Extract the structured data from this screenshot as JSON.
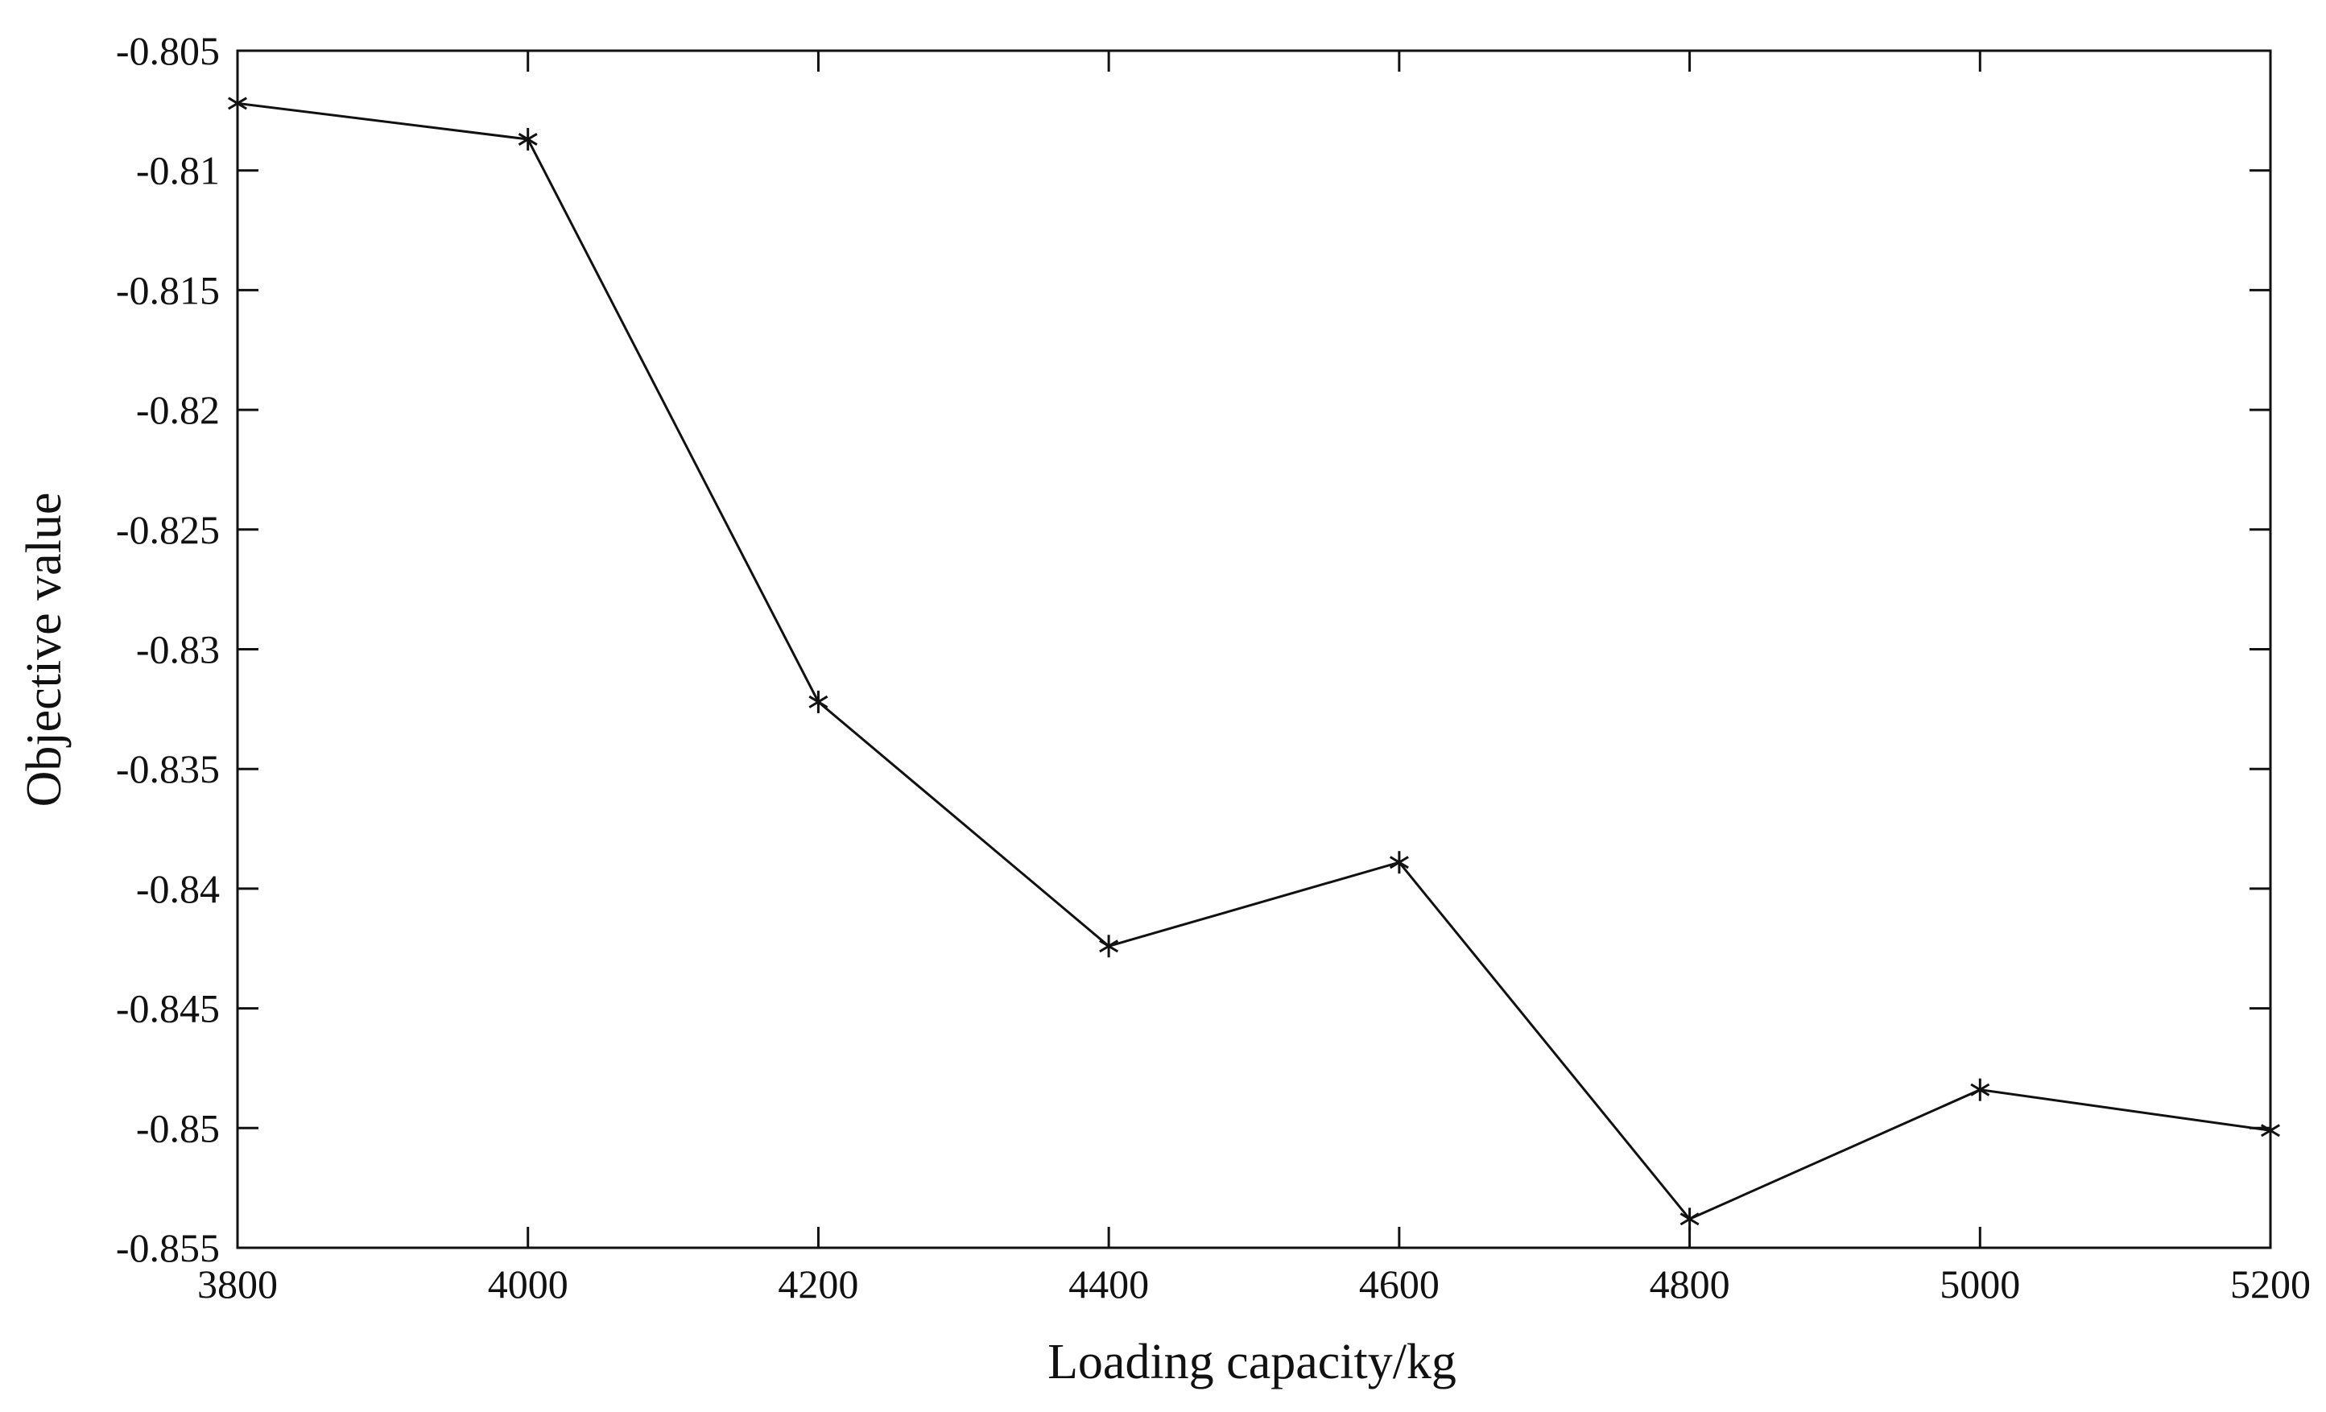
{
  "chart_data": {
    "type": "line",
    "xlabel": "Loading capacity/kg",
    "ylabel": "Objective value",
    "xlim": [
      3800,
      5200
    ],
    "ylim": [
      -0.855,
      -0.805
    ],
    "xticks": [
      "3800",
      "4000",
      "4200",
      "4400",
      "4600",
      "4800",
      "5000",
      "5200"
    ],
    "yticks": [
      "-0.805",
      "-0.81",
      "-0.815",
      "-0.82",
      "-0.825",
      "-0.83",
      "-0.835",
      "-0.84",
      "-0.845",
      "-0.85",
      "-0.855"
    ],
    "grid": false,
    "marker": "asterisk",
    "line_color": "#111111",
    "series": [
      {
        "x": [
          3800,
          4000,
          4200,
          4400,
          4600,
          4800,
          5000,
          5200
        ],
        "values": [
          -0.8072,
          -0.8087,
          -0.8322,
          -0.8424,
          -0.8389,
          -0.8538,
          -0.8484,
          -0.8501
        ]
      }
    ]
  }
}
